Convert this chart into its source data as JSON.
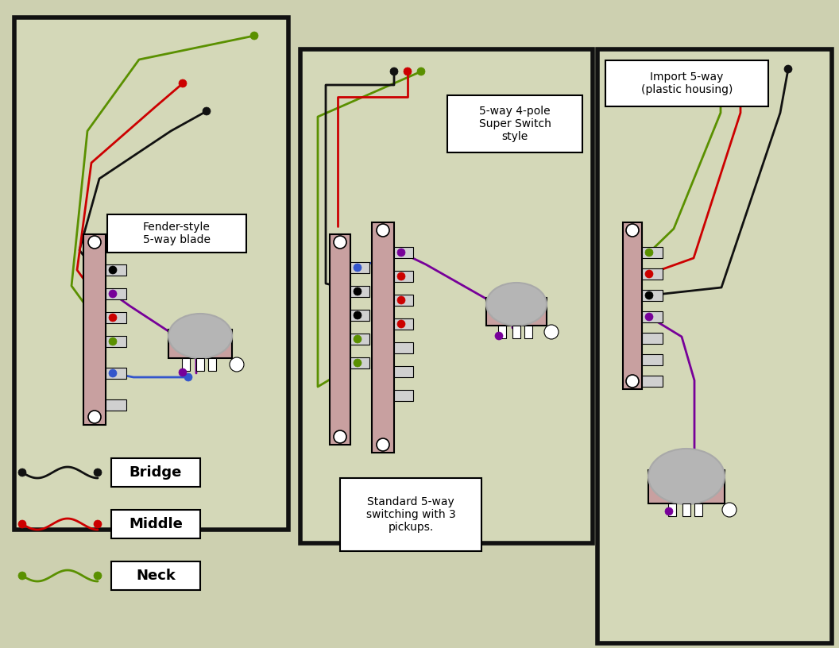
{
  "bg_color": "#cdd0b0",
  "panel_bg": "#d4d8b8",
  "border_color": "#111111",
  "switch_color": "#c8a0a0",
  "tab_color": "#d0d0d0",
  "pot_color": "#c8a0a0",
  "knob_color": "#b5b5b5",
  "wire_black": "#111111",
  "wire_red": "#cc0000",
  "wire_green": "#5a9000",
  "wire_blue": "#3355cc",
  "wire_purple": "#770099",
  "label_fender": "Fender-style\n5-way blade",
  "label_super": "5-way 4-pole\nSuper Switch\nstyle",
  "label_import": "Import 5-way\n(plastic housing)",
  "label_standard": "Standard 5-way\nswitching with 3\npickups.",
  "label_bridge": "Bridge",
  "label_middle": "Middle",
  "label_neck": "Neck",
  "p1": [
    18,
    22,
    345,
    645
  ],
  "p2": [
    378,
    62,
    368,
    622
  ],
  "p3": [
    752,
    62,
    295,
    748
  ]
}
